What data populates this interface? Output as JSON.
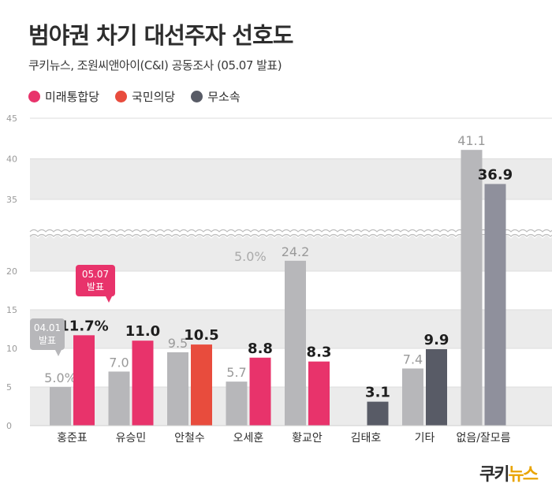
{
  "header": {
    "title": "범야권 차기 대선주자 선호도",
    "subtitle": "쿠키뉴스, 조원씨앤아이(C&I) 공동조사 (05.07 발표)"
  },
  "legend": [
    {
      "label": "미래통합당",
      "color": "#e8336b"
    },
    {
      "label": "국민의당",
      "color": "#e84c3d"
    },
    {
      "label": "무소속",
      "color": "#585b66"
    }
  ],
  "brand": {
    "part1": "쿠키",
    "part2": "뉴스"
  },
  "chart_data": {
    "type": "bar",
    "title": "범야권 차기 대선주자 선호도",
    "categories": [
      "홍준표",
      "유승민",
      "안철수",
      "오세훈",
      "황교안",
      "김태호",
      "기타",
      "없음/잘모름"
    ],
    "series": [
      {
        "name": "04.01 발표",
        "values": [
          5.0,
          7.0,
          9.5,
          5.7,
          24.2,
          null,
          7.4,
          41.1
        ],
        "color": "#b7b7ba"
      },
      {
        "name": "05.07 발표",
        "values": [
          11.7,
          11.0,
          10.5,
          8.8,
          8.3,
          3.1,
          9.9,
          36.9
        ],
        "colors": [
          "#e8336b",
          "#e8336b",
          "#e84c3d",
          "#e8336b",
          "#e8336b",
          "#585b66",
          "#585b66",
          "#8f909c"
        ]
      }
    ],
    "value_labels": {
      "prev": [
        "5.0%",
        "7.0",
        "9.5",
        "5.7",
        "24.2",
        "",
        "7.4",
        "41.1"
      ],
      "curr": [
        "11.7%",
        "11.0",
        "10.5",
        "8.8",
        "8.3",
        "3.1",
        "9.9",
        "36.9"
      ]
    },
    "yticks": [
      0,
      5,
      10,
      15,
      20,
      35,
      40,
      45
    ],
    "ylim": [
      0,
      45
    ],
    "axis_break": [
      20,
      35
    ],
    "grid": true,
    "annotations": [
      {
        "text": "04.01",
        "text2": "발표",
        "color": "#b7b7ba",
        "target": {
          "category": "홍준표",
          "series": "prev"
        }
      },
      {
        "text": "05.07",
        "text2": "발표",
        "color": "#e8336b",
        "target": {
          "category": "홍준표",
          "series": "curr"
        }
      },
      {
        "text": "5.0%",
        "color": "#aaaaaa",
        "target": {
          "category": "황교안",
          "note": "floating label"
        }
      }
    ]
  }
}
